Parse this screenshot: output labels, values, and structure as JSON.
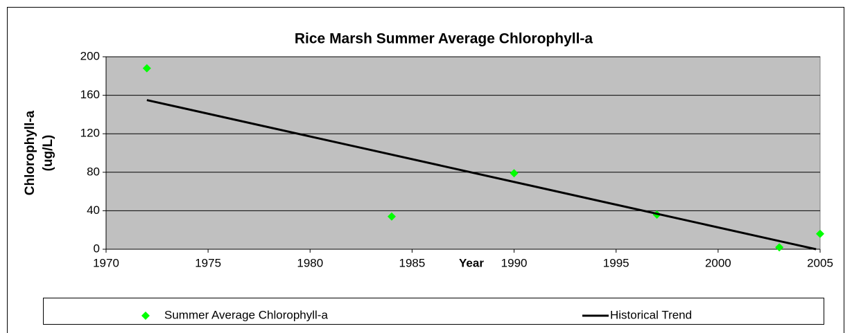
{
  "chart_data": {
    "type": "scatter",
    "title": "Rice Marsh Summer Average Chlorophyll-a",
    "xlabel": "Year",
    "ylabel": [
      "Chlorophyll-a",
      "(ug/L)"
    ],
    "xlim": [
      1970,
      2005
    ],
    "xticks": [
      1970,
      1975,
      1980,
      1985,
      1990,
      1995,
      2000,
      2005
    ],
    "ylim": [
      0,
      200
    ],
    "yticks": [
      0,
      40,
      80,
      120,
      160,
      200
    ],
    "grid": true,
    "plot_background": "#c0c0c0",
    "legend": "bottom",
    "series": [
      {
        "name": "Summer Average Chlorophyll-a",
        "color": "#00ff00",
        "mode": "markers",
        "x": [
          1972,
          1984,
          1990,
          1997,
          2003,
          2005
        ],
        "values": [
          188,
          34,
          79,
          36,
          2,
          16
        ]
      },
      {
        "name": "Historical Trend",
        "color": "#000000",
        "mode": "line",
        "x": [
          1972,
          2004.8
        ],
        "values": [
          155,
          0
        ]
      }
    ]
  }
}
